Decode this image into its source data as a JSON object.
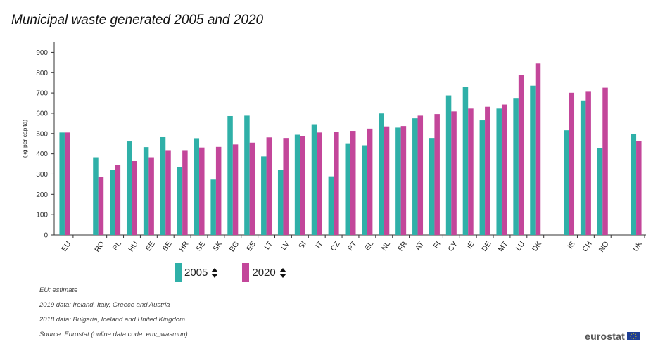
{
  "title": "Municipal waste generated 2005 and 2020",
  "colors": {
    "s2005": "#2fb0a8",
    "s2020": "#c3469a",
    "axis": "#333333"
  },
  "legend": {
    "items": [
      {
        "label": "2005",
        "color": "#2fb0a8",
        "icon": "sort-arrows-icon"
      },
      {
        "label": "2020",
        "color": "#c3469a",
        "icon": "sort-arrows-icon"
      }
    ]
  },
  "notes": [
    "EU: estimate",
    "2019 data: Ireland, Italy, Greece and Austria",
    "2018 data: Bulgaria, Iceland and United Kingdom",
    "Source: Eurostat (online data code: env_wasmun)"
  ],
  "logo": {
    "text": "eurostat",
    "icon": "eu-flag-icon"
  },
  "chart_data": {
    "type": "bar",
    "title": "Municipal waste generated 2005 and 2020",
    "ylabel": "(kg per capita)",
    "xlabel": "",
    "ylim": [
      0,
      950
    ],
    "yticks": [
      0,
      100,
      200,
      300,
      400,
      500,
      600,
      700,
      800,
      900
    ],
    "grid": false,
    "legend_position": "bottom",
    "categories": [
      "EU",
      "RO",
      "PL",
      "HU",
      "EE",
      "BE",
      "HR",
      "SE",
      "SK",
      "BG",
      "ES",
      "LT",
      "LV",
      "SI",
      "IT",
      "CZ",
      "PT",
      "EL",
      "NL",
      "FR",
      "AT",
      "FI",
      "CY",
      "IE",
      "DE",
      "MT",
      "LU",
      "DK",
      "IS",
      "CH",
      "NO",
      "UK"
    ],
    "groups_after": [
      "EU",
      "DK",
      "NO"
    ],
    "series": [
      {
        "name": "2005",
        "values": [
          505,
          383,
          319,
          461,
          433,
          482,
          336,
          477,
          273,
          586,
          588,
          387,
          320,
          494,
          546,
          289,
          452,
          442,
          599,
          529,
          575,
          478,
          688,
          731,
          565,
          623,
          672,
          736,
          516,
          663,
          428,
          499
        ]
      },
      {
        "name": "2020",
        "values": [
          505,
          287,
          346,
          364,
          383,
          418,
          418,
          431,
          434,
          446,
          455,
          481,
          478,
          487,
          505,
          508,
          513,
          524,
          535,
          537,
          588,
          596,
          609,
          623,
          632,
          643,
          790,
          845,
          701,
          706,
          726,
          463
        ]
      }
    ]
  }
}
